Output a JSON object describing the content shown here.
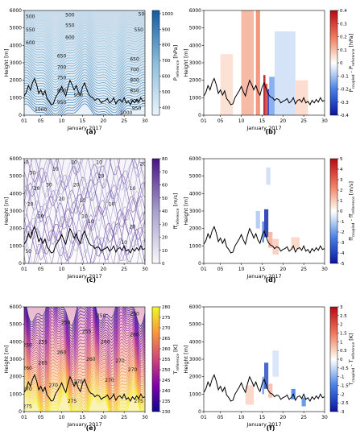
{
  "figure": {
    "panels_order": [
      "a",
      "b",
      "c",
      "d",
      "e",
      "f"
    ]
  },
  "chart_data": [
    {
      "id": "a",
      "type": "heatmap",
      "panel_label": "(a)",
      "variable": "p_reference",
      "colorbar": {
        "label": "P",
        "sub": "reference",
        "unit": " [hPa]",
        "ticks": [
          400,
          500,
          600,
          700,
          800,
          900,
          1000
        ],
        "range": [
          350,
          1020
        ],
        "colormap": "blues"
      },
      "xlabel": "January 2017",
      "ylabel": "Height [m]",
      "xlim": [
        1,
        30
      ],
      "ylim": [
        0,
        6000
      ],
      "xticks": [
        "01",
        "05",
        "10",
        "15",
        "20",
        "25",
        "30"
      ],
      "xtick_values": [
        1,
        5,
        10,
        15,
        20,
        25,
        30
      ],
      "yticks": [
        0,
        1000,
        2000,
        3000,
        4000,
        5000,
        6000
      ],
      "contour_labels": [
        {
          "x": 2.5,
          "y": 5650,
          "text": "500"
        },
        {
          "x": 2.5,
          "y": 4900,
          "text": "550"
        },
        {
          "x": 2.5,
          "y": 4150,
          "text": "600"
        },
        {
          "x": 12,
          "y": 5750,
          "text": "500"
        },
        {
          "x": 12,
          "y": 5150,
          "text": "550"
        },
        {
          "x": 12,
          "y": 4450,
          "text": "600"
        },
        {
          "x": 10,
          "y": 3400,
          "text": "650"
        },
        {
          "x": 10,
          "y": 2750,
          "text": "700"
        },
        {
          "x": 10,
          "y": 2150,
          "text": "750"
        },
        {
          "x": 10,
          "y": 1400,
          "text": "850"
        },
        {
          "x": 10,
          "y": 750,
          "text": "950"
        },
        {
          "x": 5,
          "y": 320,
          "text": "1000"
        },
        {
          "x": 29.5,
          "y": 5800,
          "text": "500"
        },
        {
          "x": 28.5,
          "y": 4900,
          "text": "550"
        },
        {
          "x": 27.5,
          "y": 3200,
          "text": "650"
        },
        {
          "x": 27.5,
          "y": 2600,
          "text": "700"
        },
        {
          "x": 27.5,
          "y": 2000,
          "text": "800"
        },
        {
          "x": 27.5,
          "y": 1400,
          "text": "850"
        },
        {
          "x": 27.5,
          "y": 800,
          "text": "900"
        },
        {
          "x": 28,
          "y": 400,
          "text": "950"
        },
        {
          "x": 25.5,
          "y": 150,
          "text": "1000"
        },
        {
          "x": 14,
          "y": 1150,
          "text": "950"
        }
      ]
    },
    {
      "id": "b",
      "type": "heatmap",
      "panel_label": "(b)",
      "variable": "p_coupled - p_reference",
      "colorbar": {
        "label": "P",
        "sub": "coupled",
        "label2": " - P",
        "sub2": "reference",
        "unit": " [hPa]",
        "ticks": [
          -0.4,
          -0.3,
          -0.2,
          -0.1,
          0,
          0.1,
          0.2,
          0.3,
          0.4
        ],
        "range": [
          -0.4,
          0.4
        ],
        "colormap": "bwr"
      },
      "xlabel": "January 2017",
      "ylabel": "Height [m]",
      "xlim": [
        1,
        30
      ],
      "ylim": [
        0,
        6000
      ],
      "xticks": [
        "01",
        "05",
        "10",
        "15",
        "20",
        "25",
        "30"
      ],
      "xtick_values": [
        1,
        5,
        10,
        15,
        20,
        25,
        30
      ],
      "yticks": [
        0,
        1000,
        2000,
        3000,
        4000,
        5000,
        6000
      ],
      "anomalies": [
        {
          "x0": 10,
          "x1": 13,
          "y0": 0,
          "y1": 6000,
          "v": 0.12
        },
        {
          "x0": 13.5,
          "x1": 14.5,
          "y0": 0,
          "y1": 6000,
          "v": 0.18
        },
        {
          "x0": 15.3,
          "x1": 15.8,
          "y0": 0,
          "y1": 2300,
          "v": 0.4
        },
        {
          "x0": 15.8,
          "x1": 16.3,
          "y0": 0,
          "y1": 1800,
          "v": 0.3
        },
        {
          "x0": 16.3,
          "x1": 16.7,
          "y0": 0,
          "y1": 1500,
          "v": -0.35
        },
        {
          "x0": 16.7,
          "x1": 18,
          "y0": 0,
          "y1": 2200,
          "v": -0.15
        },
        {
          "x0": 18,
          "x1": 23,
          "y0": 0,
          "y1": 4800,
          "v": -0.06
        },
        {
          "x0": 5,
          "x1": 8,
          "y0": 0,
          "y1": 3500,
          "v": 0.05
        },
        {
          "x0": 23,
          "x1": 26,
          "y0": 0,
          "y1": 2000,
          "v": 0.06
        }
      ]
    },
    {
      "id": "c",
      "type": "heatmap",
      "panel_label": "(c)",
      "variable": "ff_reference",
      "colorbar": {
        "label": "ff",
        "sub": "reference",
        "unit": " [m/s]",
        "ticks": [
          0,
          10,
          20,
          30,
          40,
          50,
          60,
          70,
          80
        ],
        "range": [
          0,
          80
        ],
        "colormap": "purples"
      },
      "xlabel": "January 2017",
      "ylabel": "Height [m]",
      "xlim": [
        1,
        30
      ],
      "ylim": [
        0,
        6000
      ],
      "xticks": [
        "01",
        "05",
        "10",
        "15",
        "20",
        "25",
        "30"
      ],
      "xtick_values": [
        1,
        5,
        10,
        15,
        20,
        25,
        30
      ],
      "yticks": [
        0,
        1000,
        2000,
        3000,
        4000,
        5000,
        6000
      ],
      "contour_labels": [
        {
          "x": 1.3,
          "y": 5800,
          "text": "50"
        },
        {
          "x": 3,
          "y": 5200,
          "text": "30"
        },
        {
          "x": 4,
          "y": 4300,
          "text": "20"
        },
        {
          "x": 2.5,
          "y": 3400,
          "text": "20"
        },
        {
          "x": 5,
          "y": 2700,
          "text": "20"
        },
        {
          "x": 2.5,
          "y": 1700,
          "text": "10"
        },
        {
          "x": 7,
          "y": 4500,
          "text": "30"
        },
        {
          "x": 8.5,
          "y": 5400,
          "text": "10"
        },
        {
          "x": 10,
          "y": 3700,
          "text": "20"
        },
        {
          "x": 13,
          "y": 5800,
          "text": "10"
        },
        {
          "x": 13.5,
          "y": 4500,
          "text": "20"
        },
        {
          "x": 15,
          "y": 3600,
          "text": "10"
        },
        {
          "x": 15.5,
          "y": 2700,
          "text": "10"
        },
        {
          "x": 19,
          "y": 5800,
          "text": "10"
        },
        {
          "x": 19.5,
          "y": 5000,
          "text": "20"
        },
        {
          "x": 17,
          "y": 2400,
          "text": "10"
        },
        {
          "x": 22,
          "y": 3400,
          "text": "10"
        },
        {
          "x": 27,
          "y": 4300,
          "text": "10"
        },
        {
          "x": 27,
          "y": 2100,
          "text": "20"
        },
        {
          "x": 25,
          "y": 1200,
          "text": "10"
        },
        {
          "x": 29.5,
          "y": 5700,
          "text": "20"
        },
        {
          "x": 2,
          "y": 700,
          "text": "50"
        }
      ]
    },
    {
      "id": "d",
      "type": "heatmap",
      "panel_label": "(d)",
      "variable": "ff_coupled - ff_reference",
      "colorbar": {
        "label": "ff",
        "sub": "coupled",
        "label2": " - ff",
        "sub2": "reference",
        "unit": " [m/s]",
        "ticks": [
          -5,
          -4,
          -3,
          -2,
          -1,
          0,
          1,
          2,
          3,
          4,
          5
        ],
        "range": [
          -5,
          5
        ],
        "colormap": "bwr"
      },
      "xlabel": "January 2017",
      "ylabel": "Height [m]",
      "xlim": [
        1,
        30
      ],
      "ylim": [
        0,
        6000
      ],
      "xticks": [
        "01",
        "05",
        "10",
        "15",
        "20",
        "25",
        "30"
      ],
      "xtick_values": [
        1,
        5,
        10,
        15,
        20,
        25,
        30
      ],
      "yticks": [
        0,
        1000,
        2000,
        3000,
        4000,
        5000,
        6000
      ],
      "anomalies": [
        {
          "x0": 15.5,
          "x1": 16.5,
          "y0": 1500,
          "y1": 3100,
          "v": -4.5
        },
        {
          "x0": 15,
          "x1": 15.5,
          "y0": 1200,
          "y1": 2400,
          "v": -2.5
        },
        {
          "x0": 16.5,
          "x1": 17.5,
          "y0": 900,
          "y1": 1800,
          "v": 1.5
        },
        {
          "x0": 17.5,
          "x1": 19,
          "y0": 500,
          "y1": 1400,
          "v": 1.0
        },
        {
          "x0": 13.5,
          "x1": 14.5,
          "y0": 2000,
          "y1": 3000,
          "v": -1.2
        },
        {
          "x0": 22,
          "x1": 24,
          "y0": 800,
          "y1": 1500,
          "v": 0.8
        },
        {
          "x0": 16,
          "x1": 17,
          "y0": 4500,
          "y1": 5500,
          "v": -0.8
        }
      ]
    },
    {
      "id": "e",
      "type": "heatmap",
      "panel_label": "(e)",
      "variable": "T_reference",
      "colorbar": {
        "label": "T",
        "sub": "reference",
        "unit": " [K]",
        "ticks": [
          230,
          235,
          240,
          245,
          250,
          255,
          260,
          265,
          270,
          275,
          280
        ],
        "range": [
          230,
          280
        ],
        "colormap": "plasma"
      },
      "xlabel": "January 2017",
      "ylabel": "Height [m]",
      "xlim": [
        1,
        30
      ],
      "ylim": [
        0,
        6000
      ],
      "xticks": [
        "01",
        "05",
        "10",
        "15",
        "20",
        "25",
        "30"
      ],
      "xtick_values": [
        1,
        5,
        10,
        15,
        20,
        25,
        30
      ],
      "yticks": [
        0,
        1000,
        2000,
        3000,
        4000,
        5000,
        6000
      ],
      "contour_labels": [
        {
          "x": 1.8,
          "y": 3800,
          "text": "250"
        },
        {
          "x": 1.8,
          "y": 2500,
          "text": "260"
        },
        {
          "x": 1.8,
          "y": 1300,
          "text": "270"
        },
        {
          "x": 1.8,
          "y": 300,
          "text": "275"
        },
        {
          "x": 5.5,
          "y": 4000,
          "text": "255"
        },
        {
          "x": 5.5,
          "y": 2800,
          "text": "265"
        },
        {
          "x": 8,
          "y": 1500,
          "text": "270"
        },
        {
          "x": 10,
          "y": 3400,
          "text": "260"
        },
        {
          "x": 11,
          "y": 5100,
          "text": "250"
        },
        {
          "x": 14,
          "y": 1700,
          "text": "270"
        },
        {
          "x": 16,
          "y": 4600,
          "text": "255"
        },
        {
          "x": 17,
          "y": 3000,
          "text": "260"
        },
        {
          "x": 19.5,
          "y": 5500,
          "text": "250"
        },
        {
          "x": 20.5,
          "y": 4000,
          "text": "260"
        },
        {
          "x": 21.5,
          "y": 1800,
          "text": "270"
        },
        {
          "x": 24,
          "y": 2900,
          "text": "270"
        },
        {
          "x": 27.5,
          "y": 5600,
          "text": "250"
        },
        {
          "x": 27.5,
          "y": 4400,
          "text": "260"
        },
        {
          "x": 27,
          "y": 2400,
          "text": "270"
        },
        {
          "x": 28.5,
          "y": 600,
          "text": "275"
        },
        {
          "x": 12.5,
          "y": 600,
          "text": "275"
        }
      ]
    },
    {
      "id": "f",
      "type": "heatmap",
      "panel_label": "(f)",
      "variable": "T_coupled - T_reference",
      "colorbar": {
        "label": "T",
        "sub": "coupled",
        "label2": " - T",
        "sub2": "reference",
        "unit": " [K]",
        "ticks": [
          -3,
          -2.5,
          -2,
          -1.5,
          -1,
          -0.5,
          0,
          0.5,
          1,
          1.5,
          2,
          2.5,
          3
        ],
        "range": [
          -3,
          3
        ],
        "colormap": "bwr"
      },
      "xlabel": "January 2017",
      "ylabel": "Height [m]",
      "xlim": [
        1,
        30
      ],
      "ylim": [
        0,
        6000
      ],
      "xticks": [
        "01",
        "05",
        "10",
        "15",
        "20",
        "25",
        "30"
      ],
      "xtick_values": [
        1,
        5,
        10,
        15,
        20,
        25,
        30
      ],
      "yticks": [
        0,
        1000,
        2000,
        3000,
        4000,
        5000,
        6000
      ],
      "anomalies": [
        {
          "x0": 15.5,
          "x1": 16.5,
          "y0": 1300,
          "y1": 2800,
          "v": -2.2
        },
        {
          "x0": 15,
          "x1": 15.5,
          "y0": 1000,
          "y1": 2000,
          "v": -1.2
        },
        {
          "x0": 16.5,
          "x1": 17.5,
          "y0": 800,
          "y1": 1600,
          "v": 0.8
        },
        {
          "x0": 22,
          "x1": 23,
          "y0": 700,
          "y1": 1300,
          "v": -1.6
        },
        {
          "x0": 24.5,
          "x1": 25.5,
          "y0": 300,
          "y1": 800,
          "v": -1.4
        },
        {
          "x0": 11,
          "x1": 13,
          "y0": 400,
          "y1": 1500,
          "v": 0.5
        },
        {
          "x0": 17.5,
          "x1": 19,
          "y0": 2000,
          "y1": 3500,
          "v": -0.4
        }
      ]
    }
  ],
  "boundary_layer_height": {
    "x": [
      1,
      1.5,
      2,
      2.5,
      3,
      3.5,
      4,
      4.5,
      5,
      5.5,
      6,
      6.5,
      7,
      7.5,
      8,
      8.5,
      9,
      9.5,
      10,
      10.5,
      11,
      11.5,
      12,
      12.5,
      13,
      13.5,
      14,
      14.5,
      15,
      15.5,
      16,
      16.5,
      17,
      17.5,
      18,
      18.5,
      19,
      19.5,
      20,
      20.5,
      21,
      21.5,
      22,
      22.5,
      23,
      23.5,
      24,
      24.5,
      25,
      25.5,
      26,
      26.5,
      27,
      27.5,
      28,
      28.5,
      29,
      29.5,
      30
    ],
    "y": [
      1100,
      1300,
      1700,
      1450,
      1850,
      2100,
      1750,
      1250,
      1450,
      1150,
      1400,
      950,
      800,
      600,
      650,
      1000,
      1200,
      1400,
      1650,
      1350,
      1100,
      1600,
      2000,
      1750,
      1450,
      1700,
      1350,
      1150,
      1600,
      1850,
      1500,
      1200,
      1050,
      1000,
      850,
      950,
      900,
      700,
      800,
      850,
      950,
      700,
      800,
      1000,
      650,
      850,
      900,
      750,
      1000,
      700,
      800,
      600,
      850,
      700,
      900,
      750,
      1000,
      800,
      850
    ]
  }
}
